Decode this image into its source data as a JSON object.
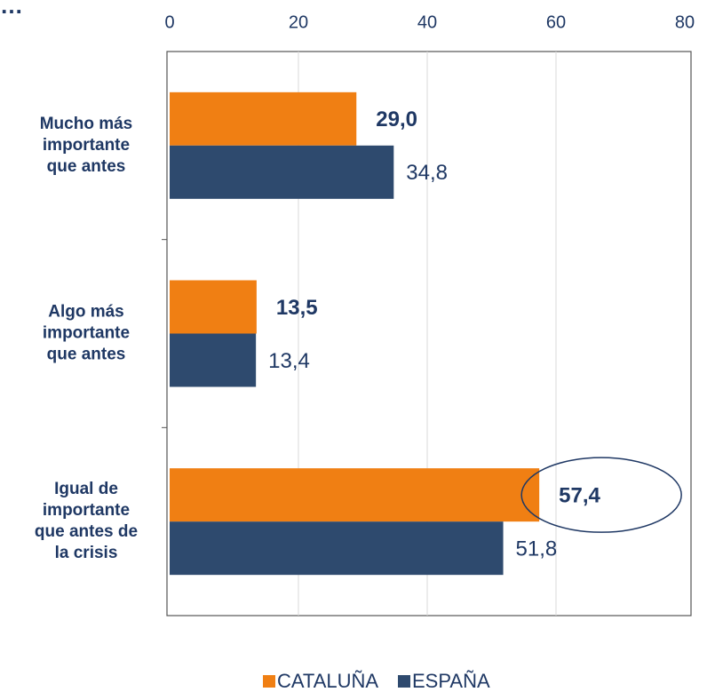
{
  "chart_data": {
    "type": "bar",
    "orientation": "horizontal",
    "title": "…",
    "categories": [
      "Mucho más\nimportante\nque antes",
      "Algo más\nimportante\nque antes",
      "Igual de\nimportante\nque antes de\nla crisis"
    ],
    "series": [
      {
        "name": "CATALUÑA",
        "color": "#f07f13",
        "values": [
          29.0,
          13.5,
          57.4
        ],
        "value_labels": [
          "29,0",
          "13,5",
          "57,4"
        ]
      },
      {
        "name": "ESPAÑA",
        "color": "#2e4a6e",
        "values": [
          34.8,
          13.4,
          51.8
        ],
        "value_labels": [
          "34,8",
          "13,4",
          "51,8"
        ]
      }
    ],
    "xlim": [
      0,
      80
    ],
    "xticks": [
      0,
      20,
      40,
      60,
      80
    ],
    "grid": true,
    "legend": "bottom"
  }
}
